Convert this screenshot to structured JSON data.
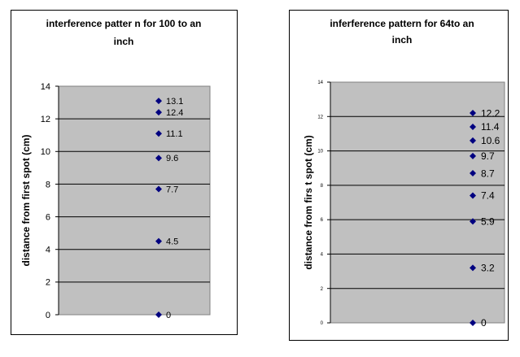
{
  "chart_data": [
    {
      "type": "scatter",
      "title_lines": [
        "interference patter n for 100  to an",
        "inch"
      ],
      "xlabel": "",
      "ylabel": "distance from first spot (cm)",
      "ylim": [
        0,
        14
      ],
      "yticks": [
        0,
        2,
        4,
        6,
        8,
        10,
        12,
        14
      ],
      "grid": true,
      "legend": "none",
      "plot_bg": "#c0c0c0",
      "marker_color": "#000080",
      "values": [
        0,
        4.5,
        7.7,
        9.6,
        11.1,
        12.4,
        13.1
      ],
      "data_labels": [
        "0",
        "4.5",
        "7.7",
        "9.6",
        "11.1",
        "12.4",
        "13.1"
      ]
    },
    {
      "type": "scatter",
      "title_lines": [
        "inferference pattern for 64to an",
        "inch"
      ],
      "xlabel": "",
      "ylabel": "distance from firs t spot (cm)",
      "ylim": [
        0,
        14
      ],
      "yticks": [
        0,
        2,
        4,
        6,
        8,
        10,
        12,
        14
      ],
      "grid": true,
      "legend": "none",
      "plot_bg": "#c0c0c0",
      "marker_color": "#000080",
      "values": [
        0,
        3.2,
        5.9,
        7.4,
        8.7,
        9.7,
        10.6,
        11.4,
        12.2
      ],
      "data_labels": [
        "0",
        "3.2",
        "5.9",
        "7.4",
        "8.7",
        "9.7",
        "10.6",
        "11.4",
        "12.2"
      ]
    }
  ]
}
